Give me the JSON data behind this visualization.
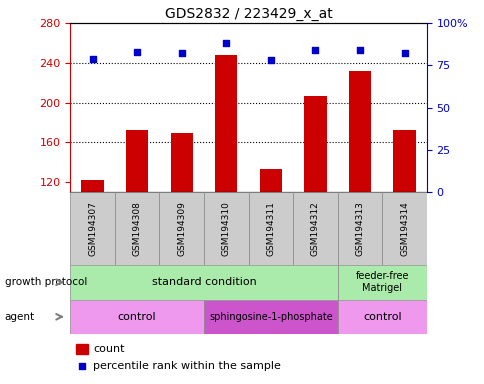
{
  "title": "GDS2832 / 223429_x_at",
  "samples": [
    "GSM194307",
    "GSM194308",
    "GSM194309",
    "GSM194310",
    "GSM194311",
    "GSM194312",
    "GSM194313",
    "GSM194314"
  ],
  "counts": [
    122,
    172,
    169,
    248,
    133,
    207,
    232,
    172
  ],
  "percentile_ranks": [
    79,
    83,
    82,
    88,
    78,
    84,
    84,
    82
  ],
  "ylim_left": [
    110,
    280
  ],
  "ylim_right": [
    0,
    100
  ],
  "yticks_left": [
    120,
    160,
    200,
    240,
    280
  ],
  "yticks_right": [
    0,
    25,
    50,
    75,
    100
  ],
  "bar_color": "#cc0000",
  "dot_color": "#0000cc",
  "bar_bottom": 110,
  "sample_box_color": "#cccccc",
  "gp_color_standard": "#aaeaaa",
  "gp_color_feeder": "#aaeaaa",
  "agent_color_control": "#ee99ee",
  "agent_color_sphingo": "#cc55cc",
  "background_color": "#ffffff",
  "tick_color_left": "#cc0000",
  "tick_color_right": "#0000cc"
}
